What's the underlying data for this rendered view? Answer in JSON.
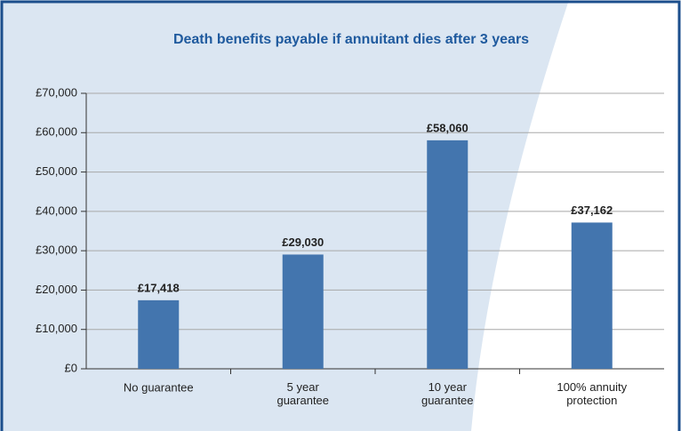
{
  "chart_data": {
    "type": "bar",
    "title": "Death benefits payable if annuitant dies after 3 years",
    "categories": [
      "No guarantee",
      "5 year\nguarantee",
      "10 year\nguarantee",
      "100% annuity\nprotection"
    ],
    "values": [
      17418,
      29030,
      58060,
      37162
    ],
    "value_labels": [
      "£17,418",
      "£29,030",
      "£58,060",
      "£37,162"
    ],
    "color": "#4375ae",
    "ylim": [
      0,
      70000
    ],
    "yticks": [
      {
        "value": 0,
        "label": "£0"
      },
      {
        "value": 10000,
        "label": "£10,000"
      },
      {
        "value": 20000,
        "label": "£20,000"
      },
      {
        "value": 30000,
        "label": "£30,000"
      },
      {
        "value": 40000,
        "label": "£40,000"
      },
      {
        "value": 50000,
        "label": "£50,000"
      },
      {
        "value": 60000,
        "label": "£60,000"
      },
      {
        "value": 70000,
        "label": "£70,000"
      }
    ],
    "grid": true
  }
}
